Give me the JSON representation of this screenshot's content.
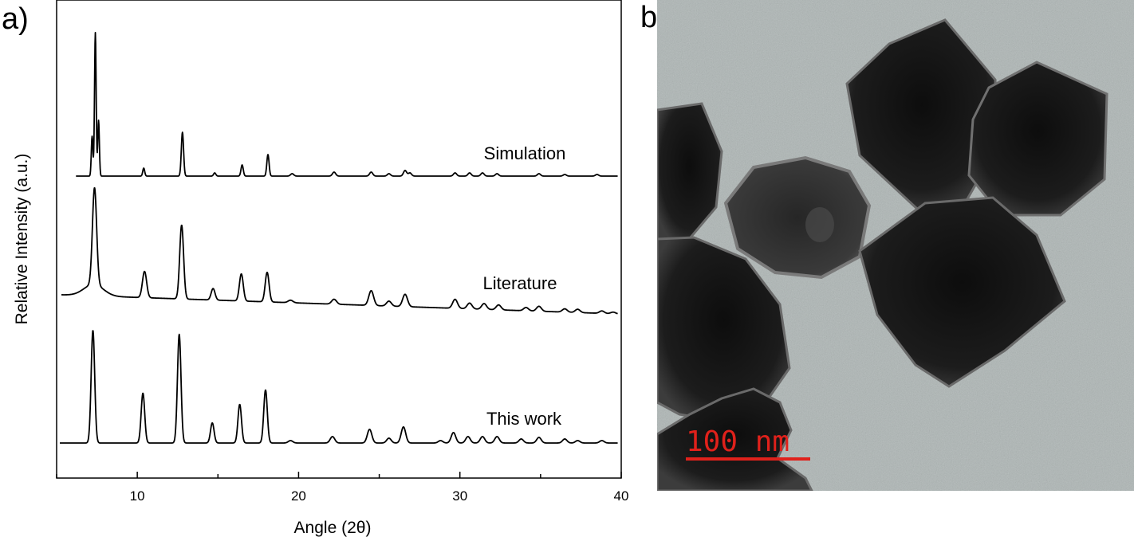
{
  "panels": {
    "a_label": "a)",
    "b_label": "b)"
  },
  "colors": {
    "trace": "#000000",
    "scale_bar": "#e0211b",
    "tem_background": "#aeb6b5",
    "particle": "#161616"
  },
  "chart_data": {
    "type": "line",
    "title": "",
    "xlabel": "Angle (2θ)",
    "ylabel": "Relative Intensity (a.u.)",
    "xlim": [
      5,
      40
    ],
    "x_ticks": [
      10,
      20,
      30,
      40
    ],
    "y_ticks_shown": false,
    "grid": false,
    "legend": "none",
    "series_offset": "stacked vertically",
    "series": [
      {
        "name": "Simulation",
        "baseline": 0,
        "peaks": [
          {
            "x": 7.2,
            "h": 50,
            "w": 0.05
          },
          {
            "x": 7.4,
            "h": 180,
            "w": 0.05
          },
          {
            "x": 7.6,
            "h": 70,
            "w": 0.05
          },
          {
            "x": 10.4,
            "h": 10,
            "w": 0.06
          },
          {
            "x": 12.8,
            "h": 55,
            "w": 0.07
          },
          {
            "x": 14.8,
            "h": 4,
            "w": 0.07
          },
          {
            "x": 16.5,
            "h": 14,
            "w": 0.07
          },
          {
            "x": 18.1,
            "h": 27,
            "w": 0.07
          },
          {
            "x": 19.6,
            "h": 3,
            "w": 0.1
          },
          {
            "x": 22.2,
            "h": 5,
            "w": 0.1
          },
          {
            "x": 24.5,
            "h": 5,
            "w": 0.1
          },
          {
            "x": 25.6,
            "h": 3,
            "w": 0.1
          },
          {
            "x": 26.6,
            "h": 7,
            "w": 0.1
          },
          {
            "x": 26.9,
            "h": 4,
            "w": 0.1
          },
          {
            "x": 29.7,
            "h": 4,
            "w": 0.1
          },
          {
            "x": 30.6,
            "h": 4,
            "w": 0.1
          },
          {
            "x": 31.4,
            "h": 4,
            "w": 0.1
          },
          {
            "x": 32.3,
            "h": 3,
            "w": 0.1
          },
          {
            "x": 34.9,
            "h": 3,
            "w": 0.1
          },
          {
            "x": 36.5,
            "h": 2,
            "w": 0.1
          },
          {
            "x": 38.5,
            "h": 2,
            "w": 0.1
          }
        ]
      },
      {
        "name": "Literature",
        "baseline": 0,
        "peaks": [
          {
            "x": 7.35,
            "h": 118,
            "w": 0.13
          },
          {
            "x": 10.45,
            "h": 32,
            "w": 0.13
          },
          {
            "x": 12.75,
            "h": 90,
            "w": 0.12
          },
          {
            "x": 14.7,
            "h": 14,
            "w": 0.12
          },
          {
            "x": 16.45,
            "h": 33,
            "w": 0.12
          },
          {
            "x": 18.05,
            "h": 36,
            "w": 0.12
          },
          {
            "x": 19.5,
            "h": 3,
            "w": 0.15
          },
          {
            "x": 22.2,
            "h": 6,
            "w": 0.15
          },
          {
            "x": 24.5,
            "h": 18,
            "w": 0.15
          },
          {
            "x": 25.6,
            "h": 6,
            "w": 0.15
          },
          {
            "x": 26.6,
            "h": 15,
            "w": 0.15
          },
          {
            "x": 29.7,
            "h": 11,
            "w": 0.15
          },
          {
            "x": 30.6,
            "h": 7,
            "w": 0.15
          },
          {
            "x": 31.5,
            "h": 7,
            "w": 0.15
          },
          {
            "x": 32.4,
            "h": 6,
            "w": 0.15
          },
          {
            "x": 34.1,
            "h": 4,
            "w": 0.15
          },
          {
            "x": 34.9,
            "h": 6,
            "w": 0.15
          },
          {
            "x": 36.5,
            "h": 4,
            "w": 0.15
          },
          {
            "x": 37.3,
            "h": 4,
            "w": 0.15
          },
          {
            "x": 38.8,
            "h": 3,
            "w": 0.15
          },
          {
            "x": 39.5,
            "h": 2,
            "w": 0.15
          }
        ]
      },
      {
        "name": "This work",
        "baseline": 0,
        "peaks": [
          {
            "x": 7.25,
            "h": 140,
            "w": 0.11
          },
          {
            "x": 10.35,
            "h": 62,
            "w": 0.11
          },
          {
            "x": 12.6,
            "h": 135,
            "w": 0.11
          },
          {
            "x": 14.65,
            "h": 25,
            "w": 0.11
          },
          {
            "x": 16.35,
            "h": 48,
            "w": 0.11
          },
          {
            "x": 17.95,
            "h": 66,
            "w": 0.11
          },
          {
            "x": 19.5,
            "h": 3,
            "w": 0.14
          },
          {
            "x": 22.1,
            "h": 8,
            "w": 0.14
          },
          {
            "x": 24.4,
            "h": 17,
            "w": 0.14
          },
          {
            "x": 25.6,
            "h": 6,
            "w": 0.14
          },
          {
            "x": 26.5,
            "h": 20,
            "w": 0.14
          },
          {
            "x": 28.8,
            "h": 3,
            "w": 0.14
          },
          {
            "x": 29.6,
            "h": 13,
            "w": 0.14
          },
          {
            "x": 30.5,
            "h": 8,
            "w": 0.14
          },
          {
            "x": 31.4,
            "h": 8,
            "w": 0.14
          },
          {
            "x": 32.3,
            "h": 8,
            "w": 0.14
          },
          {
            "x": 33.8,
            "h": 5,
            "w": 0.14
          },
          {
            "x": 34.9,
            "h": 7,
            "w": 0.14
          },
          {
            "x": 36.5,
            "h": 5,
            "w": 0.14
          },
          {
            "x": 37.3,
            "h": 3,
            "w": 0.14
          },
          {
            "x": 38.8,
            "h": 3,
            "w": 0.14
          }
        ]
      }
    ]
  },
  "tem": {
    "scale_bar_label": "100 nm"
  }
}
